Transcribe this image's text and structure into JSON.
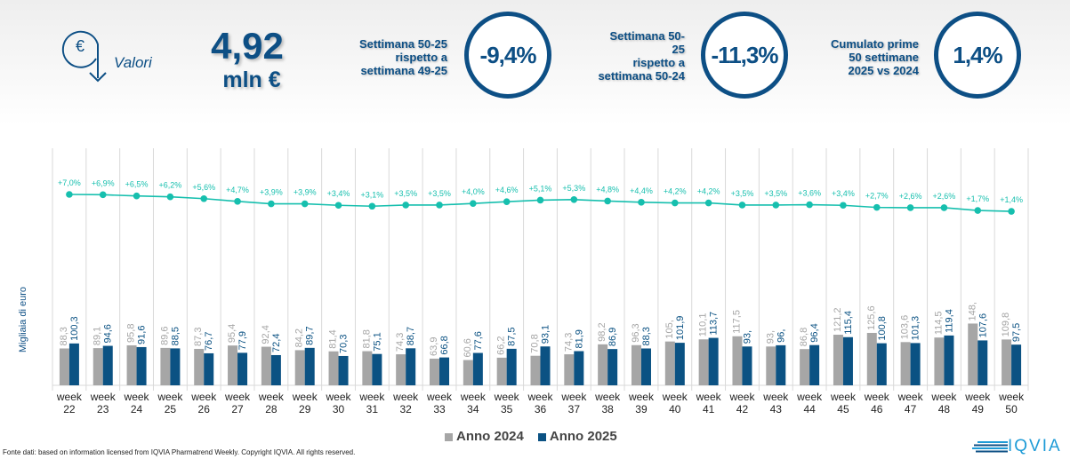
{
  "header": {
    "icon": "euro-down-arrow-icon",
    "metric_label": "Valori",
    "total_value": "4,92",
    "total_unit": "mln €",
    "kpis": [
      {
        "label": "Settimana 50-25\nrispetto a\nsettimana 49-25",
        "value": "-9,4%"
      },
      {
        "label": "Settimana 50-\n25\nrispetto a\nsettimana  50-24",
        "value": "-11,3%"
      },
      {
        "label": "Cumulato prime\n50 settimane\n2025 vs 2024",
        "value": "1,4%"
      }
    ]
  },
  "colors": {
    "anno2024": "#a6a6a6",
    "anno2025": "#0b5283",
    "line": "#16bfae",
    "primary": "#0d4f85"
  },
  "chart_data": {
    "type": "bar",
    "ylabel": "Migliaia di euro",
    "xlabel": "",
    "categories": [
      "week 22",
      "week 23",
      "week 24",
      "week 25",
      "week 26",
      "week 27",
      "week 28",
      "week 29",
      "week 30",
      "week 31",
      "week 32",
      "week 33",
      "week 34",
      "week 35",
      "week 36",
      "week 37",
      "week 38",
      "week 39",
      "week 40",
      "week 41",
      "week 42",
      "week 43",
      "week 44",
      "week 45",
      "week 46",
      "week 47",
      "week 48",
      "week 49",
      "week 50"
    ],
    "series": [
      {
        "name": "Anno 2024",
        "values": [
          88.3,
          89.1,
          95.8,
          89.6,
          87.3,
          95.4,
          92.4,
          84.2,
          81.4,
          81.8,
          74.3,
          63.9,
          60.6,
          66.2,
          70.8,
          74.3,
          98.2,
          96.3,
          105,
          110.1,
          117.5,
          93,
          86.8,
          121.2,
          125.6,
          103.6,
          114.5,
          148,
          109.8
        ],
        "labels": [
          "88,3",
          "89,1",
          "95,8",
          "89,6",
          "87,3",
          "95,4",
          "92,4",
          "84,2",
          "81,4",
          "81,8",
          "74,3",
          "63,9",
          "60,6",
          "66,2",
          "70,8",
          "74,3",
          "98,2",
          "96,3",
          "105,",
          "110,1",
          "117,5",
          "93,",
          "86,8",
          "121,2",
          "125,6",
          "103,6",
          "114,5",
          "148,",
          "109,8"
        ]
      },
      {
        "name": "Anno 2025",
        "values": [
          100.3,
          94.6,
          91.6,
          88.5,
          76.7,
          77.9,
          72.4,
          89.7,
          70.3,
          75.1,
          88.7,
          66.8,
          77.6,
          87.5,
          93.1,
          81.9,
          86.9,
          88.3,
          101.9,
          113.7,
          93,
          96,
          96.4,
          115.4,
          100.8,
          101.3,
          119.4,
          107.6,
          97.5
        ],
        "labels": [
          "100,3",
          "94,6",
          "91,6",
          "88,5",
          "76,7",
          "77,9",
          "72,4",
          "89,7",
          "70,3",
          "75,1",
          "88,7",
          "66,8",
          "77,6",
          "87,5",
          "93,1",
          "81,9",
          "86,9",
          "88,3",
          "101,9",
          "113,7",
          "93,",
          "96,",
          "96,4",
          "115,4",
          "100,8",
          "101,3",
          "119,4",
          "107,6",
          "97,5"
        ]
      }
    ],
    "line_series": {
      "name": "Cumulato % var",
      "values": [
        7.0,
        6.9,
        6.5,
        6.2,
        5.6,
        4.7,
        3.9,
        3.9,
        3.4,
        3.1,
        3.5,
        3.5,
        4.0,
        4.6,
        5.1,
        5.3,
        4.8,
        4.4,
        4.2,
        4.2,
        3.5,
        3.5,
        3.6,
        3.4,
        2.7,
        2.6,
        2.6,
        1.7,
        1.4
      ],
      "labels": [
        "+7,0%",
        "+6,9%",
        "+6,5%",
        "+6,2%",
        "+5,6%",
        "+4,7%",
        "+3,9%",
        "+3,9%",
        "+3,4%",
        "+3,1%",
        "+3,5%",
        "+3,5%",
        "+4,0%",
        "+4,6%",
        "+5,1%",
        "+5,3%",
        "+4,8%",
        "+4,4%",
        "+4,2%",
        "+4,2%",
        "+3,5%",
        "+3,5%",
        "+3,6%",
        "+3,4%",
        "+2,7%",
        "+2,6%",
        "+2,6%",
        "+1,7%",
        "+1,4%"
      ]
    },
    "ylim": [
      0,
      160
    ],
    "grid": "vertical",
    "legend": "bottom-center"
  },
  "legend": {
    "items": [
      "Anno 2024",
      "Anno 2025"
    ]
  },
  "footer": {
    "source": "Fonte dati: based on information licensed from IQVIA Pharmatrend Weekly. Copyright IQVIA. All rights reserved."
  },
  "logo": {
    "text": "IQVIA"
  }
}
